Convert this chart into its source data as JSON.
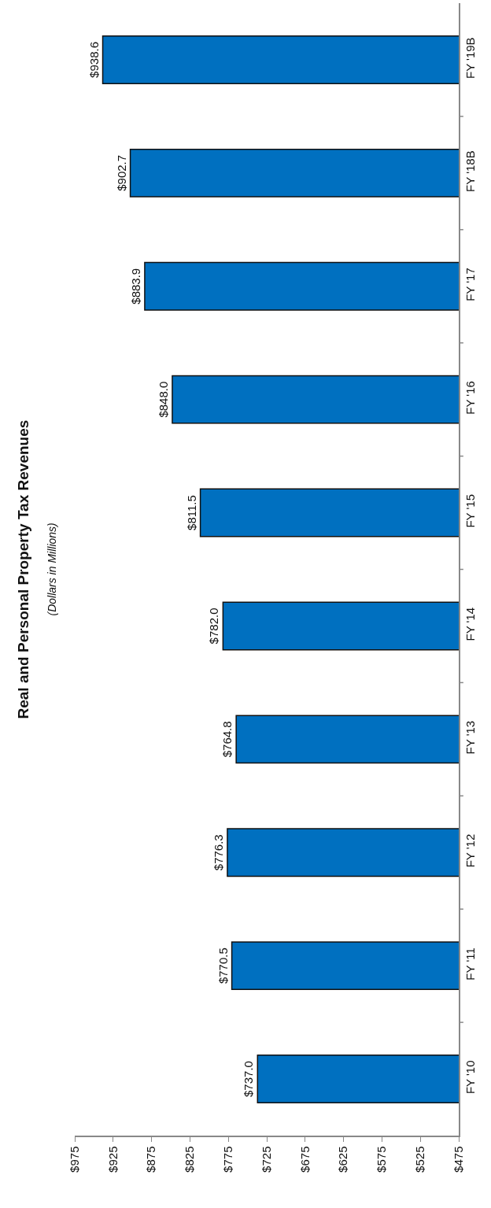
{
  "chart_data": {
    "type": "bar",
    "orientation": "horizontal",
    "title": "Real and Personal Property Tax Revenues",
    "subtitle": "(Dollars in Millions)",
    "categories": [
      "FY '19B",
      "FY '18B",
      "FY '17",
      "FY '16",
      "FY '15",
      "FY '14",
      "FY '13",
      "FY '12",
      "FY '11",
      "FY '10"
    ],
    "values": [
      938.6,
      902.7,
      883.9,
      848.0,
      811.5,
      782.0,
      764.8,
      776.3,
      770.5,
      737.0
    ],
    "value_labels": [
      "$938.6",
      "$902.7",
      "$883.9",
      "$848.0",
      "$811.5",
      "$782.0",
      "$764.8",
      "$776.3",
      "$770.5",
      "$737.0"
    ],
    "color": "#0070c0",
    "xlim": [
      975,
      475
    ],
    "xticks": [
      {
        "value": 975,
        "label": "$975"
      },
      {
        "value": 925,
        "label": "$925"
      },
      {
        "value": 875,
        "label": "$875"
      },
      {
        "value": 825,
        "label": "$825"
      },
      {
        "value": 775,
        "label": "$775"
      },
      {
        "value": 725,
        "label": "$725"
      },
      {
        "value": 675,
        "label": "$675"
      },
      {
        "value": 625,
        "label": "$625"
      },
      {
        "value": 575,
        "label": "$575"
      },
      {
        "value": 525,
        "label": "$525"
      },
      {
        "value": 475,
        "label": "$475"
      }
    ],
    "grid": false
  }
}
